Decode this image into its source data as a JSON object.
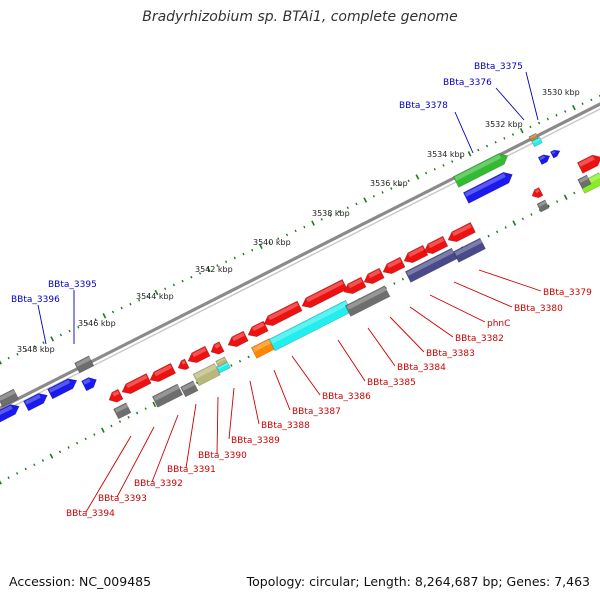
{
  "title": "Bradyrhizobium sp. BTAi1, complete genome",
  "footer": {
    "accession": "Accession: NC_009485",
    "topology": "Topology: circular; Length: 8,264,687 bp; Genes: 7,463"
  },
  "colors": {
    "forward_label": "#0000c0",
    "reverse_label": "#cc0000",
    "tick": "#1e7a1e",
    "backbone": "#888888"
  },
  "ruler": {
    "unit": "kbp",
    "labels": [
      "3530 kbp",
      "3532 kbp",
      "3534 kbp",
      "3536 kbp",
      "3538 kbp",
      "3540 kbp",
      "3542 kbp",
      "3544 kbp",
      "3546 kbp",
      "3548 kbp"
    ]
  },
  "forward_gene_labels": [
    "BBta_3375",
    "BBta_3376",
    "BBta_3378",
    "BBta_3395",
    "BBta_3396"
  ],
  "reverse_gene_labels": [
    "BBta_3379",
    "BBta_3380",
    "phnC",
    "BBta_3382",
    "BBta_3383",
    "BBta_3384",
    "BBta_3385",
    "BBta_3386",
    "BBta_3387",
    "BBta_3388",
    "BBta_3389",
    "BBta_3390",
    "BBta_3391",
    "BBta_3392",
    "BBta_3393",
    "BBta_3394"
  ],
  "feature_colors": {
    "red": "#ee1111",
    "blue": "#1a1aee",
    "gray": "#6e6e6e",
    "green": "#33bb33",
    "lime": "#88ee22",
    "cyan": "#22eeee",
    "orange": "#ff8800",
    "slate": "#4a4a8a",
    "khaki": "#b8b878",
    "brown": "#bb8844"
  }
}
